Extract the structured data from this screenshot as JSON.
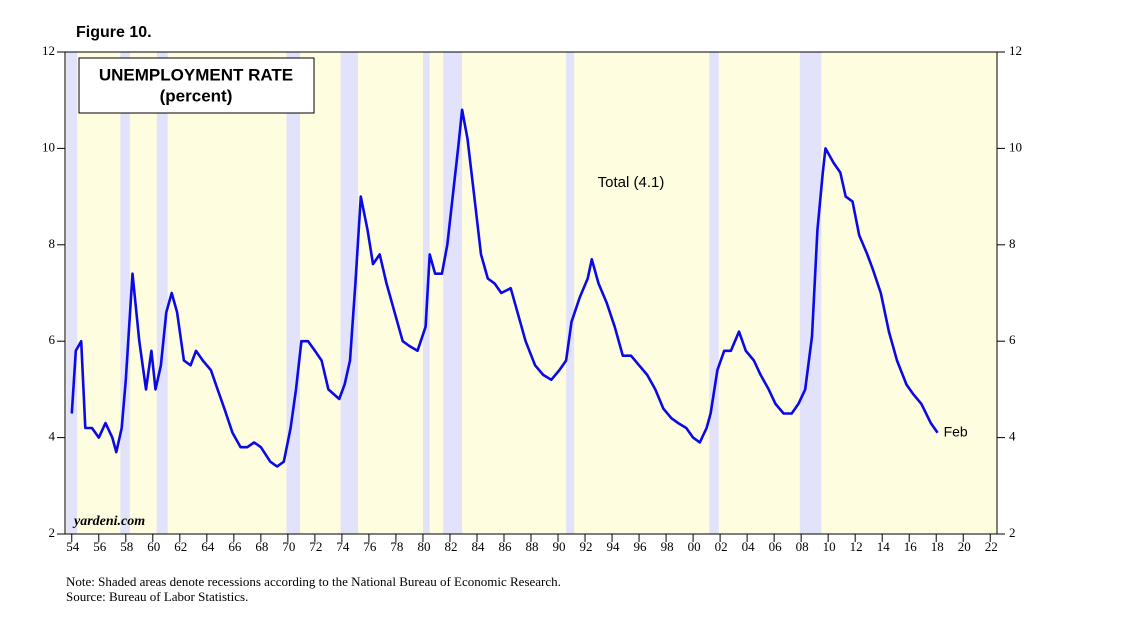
{
  "figure_label": "Figure 10.",
  "chart_data": {
    "type": "line",
    "title": "UNEMPLOYMENT RATE",
    "subtitle": "(percent)",
    "annotation": "Total (4.1)",
    "end_label": "Feb",
    "watermark": "yardeni.com",
    "x": [
      1954.0,
      1954.3,
      1954.7,
      1955.0,
      1955.5,
      1956.0,
      1956.5,
      1957.0,
      1957.3,
      1957.7,
      1958.0,
      1958.5,
      1959.0,
      1959.5,
      1959.9,
      1960.2,
      1960.6,
      1961.0,
      1961.4,
      1961.8,
      1962.3,
      1962.8,
      1963.2,
      1963.7,
      1964.3,
      1964.8,
      1965.3,
      1965.9,
      1966.5,
      1967.0,
      1967.5,
      1968.0,
      1968.7,
      1969.2,
      1969.7,
      1970.2,
      1970.6,
      1971.0,
      1971.5,
      1972.0,
      1972.5,
      1973.0,
      1973.8,
      1974.2,
      1974.6,
      1975.0,
      1975.4,
      1975.9,
      1976.3,
      1976.8,
      1977.3,
      1977.9,
      1978.5,
      1979.0,
      1979.6,
      1980.2,
      1980.5,
      1980.9,
      1981.4,
      1981.8,
      1982.2,
      1982.6,
      1982.9,
      1983.3,
      1983.8,
      1984.3,
      1984.8,
      1985.3,
      1985.8,
      1986.5,
      1987.0,
      1987.6,
      1988.3,
      1988.9,
      1989.5,
      1990.1,
      1990.6,
      1991.0,
      1991.6,
      1992.2,
      1992.5,
      1993.0,
      1993.6,
      1994.2,
      1994.8,
      1995.4,
      1996.0,
      1996.6,
      1997.2,
      1997.8,
      1998.4,
      1998.9,
      1999.5,
      2000.0,
      2000.5,
      2001.0,
      2001.3,
      2001.8,
      2002.3,
      2002.8,
      2003.4,
      2003.9,
      2004.5,
      2005.0,
      2005.6,
      2006.1,
      2006.7,
      2007.3,
      2007.8,
      2008.3,
      2008.8,
      2009.2,
      2009.6,
      2009.8,
      2010.4,
      2010.9,
      2011.3,
      2011.8,
      2012.3,
      2012.9,
      2013.3,
      2013.9,
      2014.5,
      2015.1,
      2015.8,
      2016.3,
      2016.9,
      2017.6,
      2018.1
    ],
    "series": [
      {
        "name": "Total",
        "color": "#0a0ae8",
        "values": [
          4.5,
          5.8,
          6.0,
          4.2,
          4.2,
          4.0,
          4.3,
          4.0,
          3.7,
          4.2,
          5.2,
          7.4,
          6.0,
          5.0,
          5.8,
          5.0,
          5.5,
          6.6,
          7.0,
          6.6,
          5.6,
          5.5,
          5.8,
          5.6,
          5.4,
          5.0,
          4.6,
          4.1,
          3.8,
          3.8,
          3.9,
          3.8,
          3.5,
          3.4,
          3.5,
          4.2,
          5.0,
          6.0,
          6.0,
          5.8,
          5.6,
          5.0,
          4.8,
          5.1,
          5.6,
          7.2,
          9.0,
          8.3,
          7.6,
          7.8,
          7.2,
          6.6,
          6.0,
          5.9,
          5.8,
          6.3,
          7.8,
          7.4,
          7.4,
          8.0,
          9.0,
          10.0,
          10.8,
          10.2,
          9.0,
          7.8,
          7.3,
          7.2,
          7.0,
          7.1,
          6.6,
          6.0,
          5.5,
          5.3,
          5.2,
          5.4,
          5.6,
          6.4,
          6.9,
          7.3,
          7.7,
          7.2,
          6.8,
          6.3,
          5.7,
          5.7,
          5.5,
          5.3,
          5.0,
          4.6,
          4.4,
          4.3,
          4.2,
          4.0,
          3.9,
          4.2,
          4.5,
          5.4,
          5.8,
          5.8,
          6.2,
          5.8,
          5.6,
          5.3,
          5.0,
          4.7,
          4.5,
          4.5,
          4.7,
          5.0,
          6.1,
          8.3,
          9.5,
          10.0,
          9.7,
          9.5,
          9.0,
          8.9,
          8.2,
          7.8,
          7.5,
          7.0,
          6.2,
          5.6,
          5.1,
          4.9,
          4.7,
          4.3,
          4.1
        ]
      }
    ],
    "recessions": [
      [
        1953.6,
        1954.4
      ],
      [
        1957.6,
        1958.3
      ],
      [
        1960.3,
        1961.1
      ],
      [
        1969.9,
        1970.9
      ],
      [
        1973.9,
        1975.2
      ],
      [
        1980.0,
        1980.5
      ],
      [
        1981.5,
        1982.9
      ],
      [
        1990.6,
        1991.2
      ],
      [
        2001.2,
        2001.9
      ],
      [
        2007.9,
        2009.5
      ]
    ],
    "recession_color": "#e2e2fa",
    "background_color": "#fffde0",
    "xlim": [
      1953.5,
      2022.5
    ],
    "xticks": [
      {
        "value": 1954,
        "label": "54"
      },
      {
        "value": 1956,
        "label": "56"
      },
      {
        "value": 1958,
        "label": "58"
      },
      {
        "value": 1960,
        "label": "60"
      },
      {
        "value": 1962,
        "label": "62"
      },
      {
        "value": 1964,
        "label": "64"
      },
      {
        "value": 1966,
        "label": "66"
      },
      {
        "value": 1968,
        "label": "68"
      },
      {
        "value": 1970,
        "label": "70"
      },
      {
        "value": 1972,
        "label": "72"
      },
      {
        "value": 1974,
        "label": "74"
      },
      {
        "value": 1976,
        "label": "76"
      },
      {
        "value": 1978,
        "label": "78"
      },
      {
        "value": 1980,
        "label": "80"
      },
      {
        "value": 1982,
        "label": "82"
      },
      {
        "value": 1984,
        "label": "84"
      },
      {
        "value": 1986,
        "label": "86"
      },
      {
        "value": 1988,
        "label": "88"
      },
      {
        "value": 1990,
        "label": "90"
      },
      {
        "value": 1992,
        "label": "92"
      },
      {
        "value": 1994,
        "label": "94"
      },
      {
        "value": 1996,
        "label": "96"
      },
      {
        "value": 1998,
        "label": "98"
      },
      {
        "value": 2000,
        "label": "00"
      },
      {
        "value": 2002,
        "label": "02"
      },
      {
        "value": 2004,
        "label": "04"
      },
      {
        "value": 2006,
        "label": "06"
      },
      {
        "value": 2008,
        "label": "08"
      },
      {
        "value": 2010,
        "label": "10"
      },
      {
        "value": 2012,
        "label": "12"
      },
      {
        "value": 2014,
        "label": "14"
      },
      {
        "value": 2016,
        "label": "16"
      },
      {
        "value": 2018,
        "label": "18"
      },
      {
        "value": 2020,
        "label": "20"
      },
      {
        "value": 2022,
        "label": "22"
      }
    ],
    "ylim": [
      2,
      12
    ],
    "yticks": [
      2,
      4,
      6,
      8,
      10,
      12
    ],
    "y2lim": [
      2,
      12
    ],
    "y2ticks": [
      2,
      4,
      6,
      8,
      10,
      12
    ]
  },
  "note": "Note: Shaded areas denote recessions according to the National Bureau of Economic Research.",
  "source": "Source: Bureau of Labor Statistics."
}
